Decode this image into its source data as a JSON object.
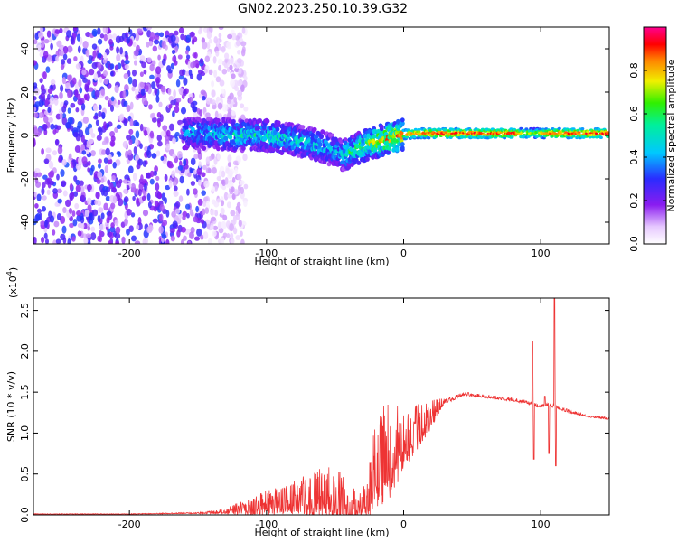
{
  "title": "GN02.2023.250.10.39.G32",
  "chart_data": [
    {
      "type": "heatmap",
      "title": "GN02.2023.250.10.39.G32",
      "xlabel": "Height of straight line (km)",
      "ylabel": "Frequency (Hz)",
      "xlim": [
        -270,
        150
      ],
      "ylim": [
        -50,
        50
      ],
      "xticks": [
        -200,
        -100,
        0,
        100
      ],
      "xtick_labels": [
        "-200",
        "-100",
        "0",
        "100"
      ],
      "yticks": [
        -40,
        -20,
        0,
        20,
        40
      ],
      "ytick_labels": [
        "-40",
        "-20",
        "0",
        "20",
        "40"
      ],
      "colorbar": {
        "label": "Normalized spectral amplitude",
        "range": [
          0.0,
          1.0
        ],
        "ticks": [
          0.0,
          0.2,
          0.4,
          0.6,
          0.8
        ],
        "tick_labels": [
          "0.0",
          "0.2",
          "0.4",
          "0.6",
          "0.8"
        ],
        "colormap": "rainbow (white-violet-blue-cyan-green-yellow-red-magenta)"
      },
      "ridge": {
        "description": "Doppler frequency track",
        "x": [
          -155,
          -140,
          -120,
          -100,
          -80,
          -65,
          -55,
          -45,
          -40,
          -30,
          -20,
          -10,
          0,
          10,
          20,
          40,
          60,
          80,
          95,
          100,
          110,
          150
        ],
        "frequency": [
          1,
          1,
          0,
          0,
          -2,
          -4,
          -6,
          -9,
          -8,
          -5,
          -3,
          -1,
          0.5,
          1,
          1,
          1,
          1,
          1,
          1,
          1,
          1,
          1
        ],
        "amplitude": [
          0.5,
          0.5,
          0.55,
          0.55,
          0.55,
          0.55,
          0.5,
          0.5,
          0.6,
          0.7,
          0.8,
          0.9,
          0.9,
          0.85,
          0.95,
          0.95,
          0.95,
          0.95,
          0.7,
          0.8,
          0.95,
          0.95
        ]
      },
      "noise_region": {
        "x": [
          -270,
          -135
        ],
        "frequency": [
          -50,
          50
        ],
        "amplitude": [
          0.0,
          0.3
        ]
      }
    },
    {
      "type": "line",
      "xlabel": "Height of straight line (km)",
      "ylabel": "SNR (10 * v/v)",
      "y_multiplier_label": "(x10",
      "y_multiplier_exp": "4",
      "y_multiplier_close": ")",
      "xlim": [
        -270,
        150
      ],
      "ylim": [
        0,
        2.65
      ],
      "xticks": [
        -200,
        -100,
        0,
        100
      ],
      "xtick_labels": [
        "-200",
        "-100",
        "0",
        "100"
      ],
      "yticks": [
        0.0,
        0.5,
        1.0,
        1.5,
        2.0,
        2.5
      ],
      "ytick_labels": [
        "0.0",
        "0.5",
        "1.0",
        "1.5",
        "2.0",
        "2.5"
      ],
      "color": "#ee3333",
      "envelope": {
        "x": [
          -270,
          -200,
          -150,
          -130,
          -120,
          -100,
          -80,
          -60,
          -50,
          -40,
          -30,
          -25,
          -20,
          -15,
          -10,
          -5,
          0,
          10,
          20,
          30,
          45,
          60,
          80,
          90,
          95,
          100,
          105,
          110,
          120,
          135,
          150
        ],
        "baseline": [
          0.01,
          0.01,
          0.02,
          0.03,
          0.05,
          0.08,
          0.12,
          0.15,
          0.12,
          0.05,
          0.04,
          0.2,
          0.4,
          0.5,
          0.55,
          0.65,
          0.75,
          0.95,
          1.15,
          1.38,
          1.47,
          1.44,
          1.4,
          1.37,
          1.34,
          1.32,
          1.34,
          1.32,
          1.26,
          1.2,
          1.17
        ],
        "peak_amplitude": [
          0.005,
          0.005,
          0.01,
          0.05,
          0.12,
          0.22,
          0.3,
          0.45,
          0.5,
          0.35,
          0.2,
          0.6,
          0.85,
          0.95,
          0.85,
          0.7,
          0.5,
          0.4,
          0.25,
          0.05,
          0.03,
          0.03,
          0.03,
          0.03,
          0.03,
          0.03,
          0.03,
          0.03,
          0.03,
          0.02,
          0.02
        ]
      },
      "spikes": [
        {
          "x": 94,
          "y": 2.12
        },
        {
          "x": 95,
          "y": 0.68
        },
        {
          "x": 103,
          "y": 1.45
        },
        {
          "x": 106,
          "y": 0.75
        },
        {
          "x": 110,
          "y": 2.65
        },
        {
          "x": 111,
          "y": 0.6
        }
      ]
    }
  ]
}
